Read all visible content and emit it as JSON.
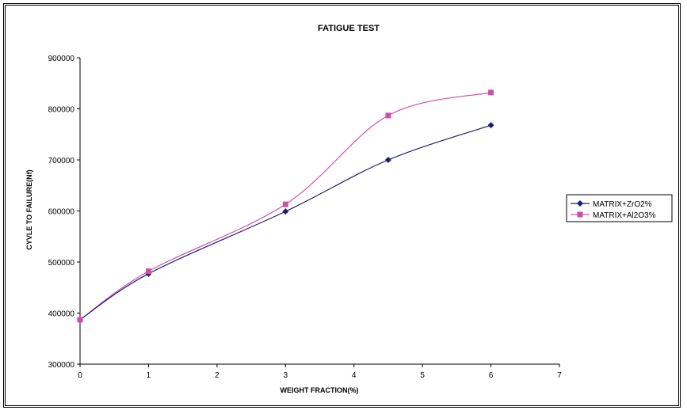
{
  "chart_data": {
    "type": "line",
    "title": "FATIGUE TEST",
    "xlabel": "WEIGHT FRACTION(%)",
    "ylabel": "CYVLE TO FAILURE(Nf)",
    "xlim": [
      0,
      7
    ],
    "ylim": [
      300000,
      900000
    ],
    "x_ticks": [
      "0",
      "1",
      "2",
      "3",
      "4",
      "5",
      "6",
      "7"
    ],
    "y_ticks": [
      "300000",
      "400000",
      "500000",
      "600000",
      "700000",
      "800000",
      "900000"
    ],
    "grid": false,
    "smoothed": true,
    "legend_position": "right",
    "series": [
      {
        "name": "MATRIX+ZrO2%",
        "color": "#1f1f6e",
        "marker": "diamond",
        "x": [
          0,
          1,
          3,
          4.5,
          6
        ],
        "values": [
          387000,
          477000,
          599000,
          700000,
          768000
        ]
      },
      {
        "name": "MATRIX+Al2O3%",
        "color": "#cc4fa8",
        "marker": "square",
        "x": [
          0,
          1,
          3,
          4.5,
          6
        ],
        "values": [
          387000,
          482000,
          613000,
          787000,
          832000
        ]
      }
    ]
  }
}
